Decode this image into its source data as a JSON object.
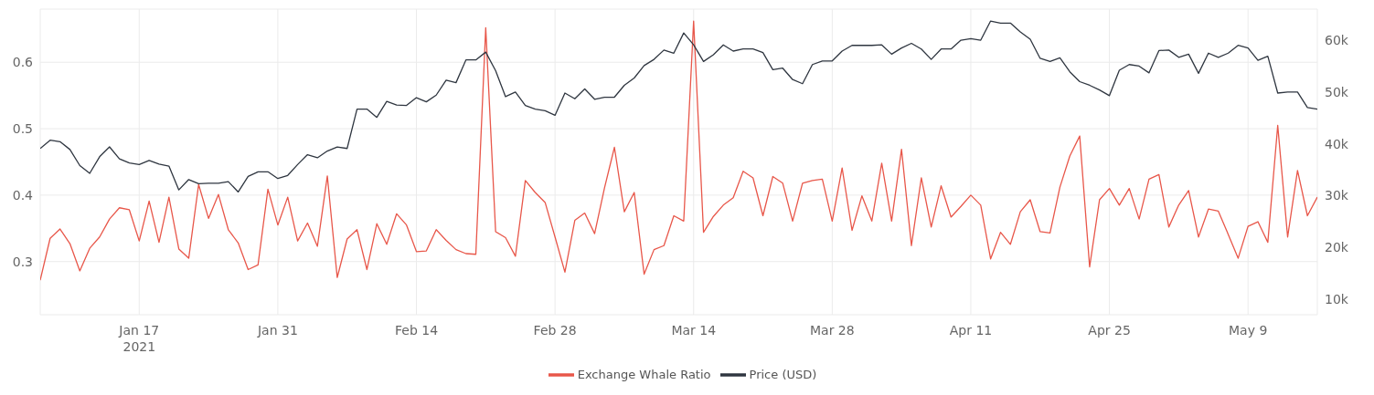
{
  "chart_data": {
    "type": "line",
    "legend": "bottom",
    "grid": true,
    "marker": "none",
    "line_style": "solid",
    "x": [
      "2021-01-07",
      "2021-01-08",
      "2021-01-09",
      "2021-01-10",
      "2021-01-11",
      "2021-01-12",
      "2021-01-13",
      "2021-01-14",
      "2021-01-15",
      "2021-01-16",
      "2021-01-17",
      "2021-01-18",
      "2021-01-19",
      "2021-01-20",
      "2021-01-21",
      "2021-01-22",
      "2021-01-23",
      "2021-01-24",
      "2021-01-25",
      "2021-01-26",
      "2021-01-27",
      "2021-01-28",
      "2021-01-29",
      "2021-01-30",
      "2021-01-31",
      "2021-02-01",
      "2021-02-02",
      "2021-02-03",
      "2021-02-04",
      "2021-02-05",
      "2021-02-06",
      "2021-02-07",
      "2021-02-08",
      "2021-02-09",
      "2021-02-10",
      "2021-02-11",
      "2021-02-12",
      "2021-02-13",
      "2021-02-14",
      "2021-02-15",
      "2021-02-16",
      "2021-02-17",
      "2021-02-18",
      "2021-02-19",
      "2021-02-20",
      "2021-02-21",
      "2021-02-22",
      "2021-02-23",
      "2021-02-24",
      "2021-02-25",
      "2021-02-26",
      "2021-02-27",
      "2021-02-28",
      "2021-03-01",
      "2021-03-02",
      "2021-03-03",
      "2021-03-04",
      "2021-03-05",
      "2021-03-06",
      "2021-03-07",
      "2021-03-08",
      "2021-03-09",
      "2021-03-10",
      "2021-03-11",
      "2021-03-12",
      "2021-03-13",
      "2021-03-14",
      "2021-03-15",
      "2021-03-16",
      "2021-03-17",
      "2021-03-18",
      "2021-03-19",
      "2021-03-20",
      "2021-03-21",
      "2021-03-22",
      "2021-03-23",
      "2021-03-24",
      "2021-03-25",
      "2021-03-26",
      "2021-03-27",
      "2021-03-28",
      "2021-03-29",
      "2021-03-30",
      "2021-03-31",
      "2021-04-01",
      "2021-04-02",
      "2021-04-03",
      "2021-04-04",
      "2021-04-05",
      "2021-04-06",
      "2021-04-07",
      "2021-04-08",
      "2021-04-09",
      "2021-04-10",
      "2021-04-11",
      "2021-04-12",
      "2021-04-13",
      "2021-04-14",
      "2021-04-15",
      "2021-04-16",
      "2021-04-17",
      "2021-04-18",
      "2021-04-19",
      "2021-04-20",
      "2021-04-21",
      "2021-04-22",
      "2021-04-23",
      "2021-04-24",
      "2021-04-25",
      "2021-04-26",
      "2021-04-27",
      "2021-04-28",
      "2021-04-29",
      "2021-04-30",
      "2021-05-01",
      "2021-05-02",
      "2021-05-03",
      "2021-05-04",
      "2021-05-05",
      "2021-05-06",
      "2021-05-07",
      "2021-05-08",
      "2021-05-09",
      "2021-05-10",
      "2021-05-11",
      "2021-05-12",
      "2021-05-13",
      "2021-05-14",
      "2021-05-15",
      "2021-05-16"
    ],
    "xlim": [
      "2021-01-07",
      "2021-05-16"
    ],
    "xticks": [
      {
        "value": "2021-01-17",
        "label": "Jan 17\n2021"
      },
      {
        "value": "2021-01-31",
        "label": "Jan 31"
      },
      {
        "value": "2021-02-14",
        "label": "Feb 14"
      },
      {
        "value": "2021-02-28",
        "label": "Feb 28"
      },
      {
        "value": "2021-03-14",
        "label": "Mar 14"
      },
      {
        "value": "2021-03-28",
        "label": "Mar 28"
      },
      {
        "value": "2021-04-11",
        "label": "Apr 11"
      },
      {
        "value": "2021-04-25",
        "label": "Apr 25"
      },
      {
        "value": "2021-05-09",
        "label": "May 9"
      }
    ],
    "ylim": [
      0.22,
      0.68
    ],
    "yticks": [
      0.3,
      0.4,
      0.5,
      0.6
    ],
    "y2lim": [
      7000,
      66000
    ],
    "y2ticks": [
      {
        "value": 10000,
        "label": "10k"
      },
      {
        "value": 20000,
        "label": "20k"
      },
      {
        "value": 30000,
        "label": "30k"
      },
      {
        "value": 40000,
        "label": "40k"
      },
      {
        "value": 50000,
        "label": "50k"
      },
      {
        "value": 60000,
        "label": "60k"
      }
    ],
    "series": [
      {
        "name": "Exchange Whale Ratio",
        "color": "#e8574a",
        "values": [
          0.272,
          0.335,
          0.349,
          0.327,
          0.286,
          0.32,
          0.337,
          0.364,
          0.381,
          0.378,
          0.331,
          0.391,
          0.329,
          0.397,
          0.319,
          0.305,
          0.416,
          0.365,
          0.401,
          0.348,
          0.328,
          0.288,
          0.295,
          0.409,
          0.355,
          0.397,
          0.331,
          0.358,
          0.323,
          0.429,
          0.276,
          0.334,
          0.348,
          0.288,
          0.357,
          0.326,
          0.372,
          0.355,
          0.315,
          0.316,
          0.348,
          0.332,
          0.318,
          0.312,
          0.311,
          0.652,
          0.345,
          0.336,
          0.308,
          0.422,
          0.404,
          0.389,
          0.337,
          0.284,
          0.362,
          0.373,
          0.342,
          0.411,
          0.472,
          0.375,
          0.404,
          0.281,
          0.318,
          0.324,
          0.369,
          0.361,
          0.662,
          0.344,
          0.368,
          0.385,
          0.396,
          0.436,
          0.426,
          0.369,
          0.428,
          0.418,
          0.361,
          0.418,
          0.422,
          0.424,
          0.361,
          0.441,
          0.347,
          0.399,
          0.361,
          0.448,
          0.361,
          0.469,
          0.324,
          0.426,
          0.352,
          0.414,
          0.367,
          0.383,
          0.4,
          0.385,
          0.304,
          0.344,
          0.326,
          0.375,
          0.393,
          0.345,
          0.343,
          0.412,
          0.459,
          0.489,
          0.292,
          0.393,
          0.41,
          0.385,
          0.41,
          0.364,
          0.424,
          0.431,
          0.352,
          0.385,
          0.407,
          0.337,
          0.379,
          0.376,
          0.341,
          0.305,
          0.353,
          0.36,
          0.329,
          0.505,
          0.337,
          0.437,
          0.369,
          0.397
        ]
      },
      {
        "name": "Price (USD)",
        "color": "#2f3640",
        "axis": "y2",
        "values": [
          39100,
          40700,
          40400,
          38900,
          35800,
          34300,
          37500,
          39400,
          37100,
          36300,
          36000,
          36800,
          36100,
          35700,
          31100,
          33100,
          32300,
          32400,
          32400,
          32700,
          30700,
          33700,
          34600,
          34600,
          33300,
          33900,
          36000,
          37900,
          37300,
          38600,
          39400,
          39100,
          46700,
          46700,
          45100,
          48200,
          47500,
          47400,
          48900,
          48100,
          49400,
          52300,
          51800,
          56200,
          56200,
          57700,
          54100,
          49100,
          50000,
          47400,
          46700,
          46400,
          45500,
          49800,
          48700,
          50600,
          48600,
          49000,
          49000,
          51300,
          52700,
          55100,
          56300,
          58100,
          57500,
          61400,
          59100,
          55900,
          57200,
          59100,
          57900,
          58300,
          58300,
          57600,
          54300,
          54600,
          52400,
          51600,
          55300,
          56000,
          56000,
          57900,
          59000,
          59000,
          59000,
          59100,
          57300,
          58500,
          59400,
          58300,
          56300,
          58300,
          58300,
          60000,
          60300,
          60000,
          63700,
          63300,
          63300,
          61600,
          60200,
          56500,
          55900,
          56600,
          53900,
          52000,
          51300,
          50400,
          49300,
          54200,
          55300,
          55000,
          53700,
          58000,
          58100,
          56700,
          57300,
          53600,
          57500,
          56700,
          57500,
          59000,
          58500,
          56100,
          56900,
          49800,
          50000,
          50000,
          47000,
          46700
        ]
      }
    ]
  }
}
